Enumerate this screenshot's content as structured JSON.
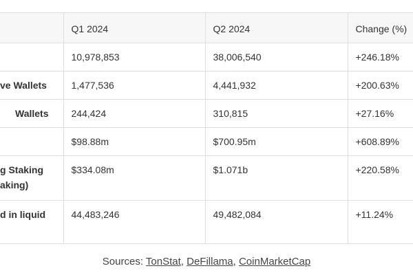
{
  "table": {
    "headers": [
      "Q1 2024",
      "Q2 2024",
      "Change (%)"
    ],
    "rows": [
      {
        "cells": [
          "10,978,853",
          "38,006,540",
          "+246.18%"
        ]
      },
      {
        "label": [
          "ve Wallets"
        ],
        "cells": [
          "1,477,536",
          "4,441,932",
          "+200.63%"
        ]
      },
      {
        "label": [
          "Wallets"
        ],
        "cells": [
          "244,424",
          "310,815",
          "+27.16%"
        ]
      },
      {
        "cells": [
          "$98.88m",
          "$700.95m",
          "+608.89%"
        ]
      },
      {
        "label": [
          "g Staking",
          "aking)"
        ],
        "cells": [
          "$334.08m",
          "$1.071b",
          "+220.58%"
        ]
      },
      {
        "label": [
          "d in liquid"
        ],
        "cells": [
          "44,483,246",
          "49,482,084",
          "+11.24%"
        ]
      }
    ]
  },
  "footer": {
    "prefix": "Sources: ",
    "sources": [
      "TonStat",
      "DeFillama",
      "CoinMarketCap"
    ],
    "separator": ", "
  }
}
